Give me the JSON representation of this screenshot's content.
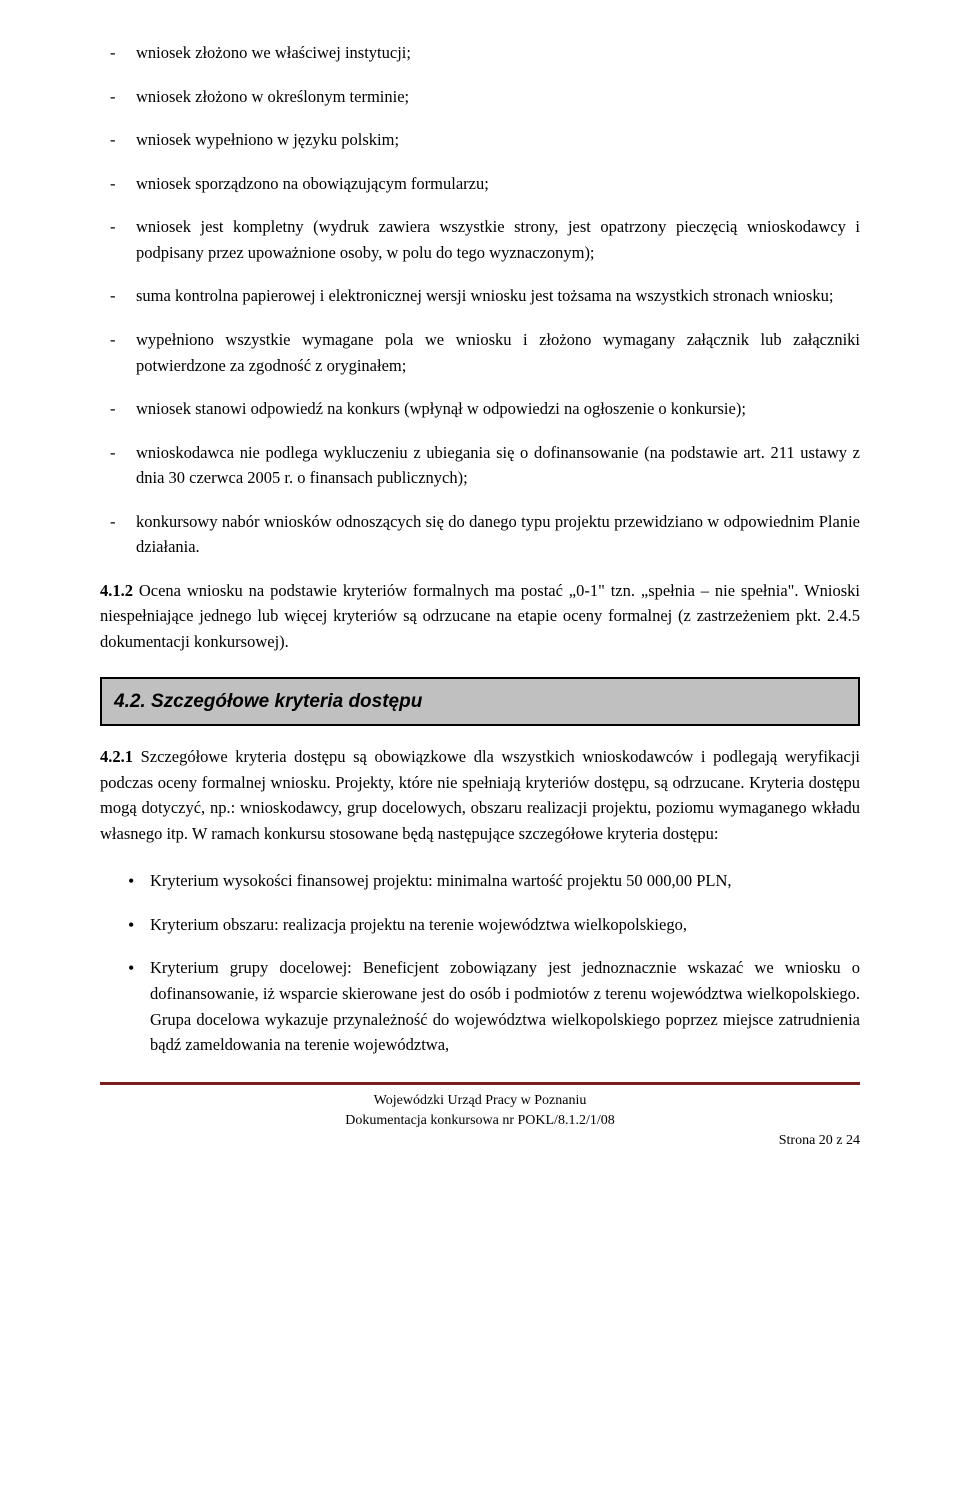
{
  "dash_items": [
    "wniosek złożono we właściwej instytucji;",
    "wniosek złożono w określonym terminie;",
    "wniosek wypełniono w języku polskim;",
    "wniosek sporządzono na obowiązującym formularzu;",
    "wniosek jest kompletny (wydruk zawiera wszystkie strony, jest opatrzony pieczęcią wnioskodawcy i podpisany przez upoważnione osoby, w polu do tego wyznaczonym);",
    "suma kontrolna papierowej i elektronicznej wersji wniosku jest tożsama na wszystkich stronach wniosku;",
    "wypełniono wszystkie wymagane pola we wniosku i złożono wymagany załącznik lub załączniki potwierdzone za zgodność z oryginałem;",
    "wniosek stanowi odpowiedź na konkurs (wpłynął w odpowiedzi na ogłoszenie o konkursie);",
    "wnioskodawca nie podlega wykluczeniu z ubiegania się o dofinansowanie (na podstawie art. 211 ustawy z dnia 30 czerwca 2005 r. o finansach publicznych);",
    "konkursowy nabór wniosków odnoszących się do danego typu projektu przewidziano w odpowiednim Planie działania."
  ],
  "para_4_1_2_lead": "4.1.2",
  "para_4_1_2_body": " Ocena wniosku na podstawie kryteriów formalnych ma postać „0-1\" tzn. „spełnia – nie spełnia\". Wnioski niespełniające jednego lub więcej kryteriów są odrzucane na etapie oceny formalnej (z zastrzeżeniem pkt. 2.4.5 dokumentacji konkursowej).",
  "section_4_2_title": "4.2. Szczegółowe kryteria dostępu",
  "para_4_2_1_lead": "4.2.1",
  "para_4_2_1_body": " Szczegółowe kryteria dostępu są obowiązkowe dla wszystkich wnioskodawców i podlegają weryfikacji podczas oceny formalnej wniosku. Projekty, które nie spełniają kryteriów dostępu, są odrzucane. Kryteria dostępu mogą dotyczyć, np.: wnioskodawcy, grup docelowych, obszaru realizacji projektu, poziomu wymaganego wkładu własnego itp. W ramach konkursu stosowane będą następujące szczegółowe kryteria dostępu:",
  "bullet_items": [
    "Kryterium wysokości finansowej projektu:  minimalna wartość projektu 50 000,00 PLN,",
    "Kryterium obszaru: realizacja projektu na terenie województwa wielkopolskiego,",
    "Kryterium grupy docelowej: Beneficjent zobowiązany jest jednoznacznie wskazać we wniosku o dofinansowanie, iż wsparcie skierowane jest do osób i podmiotów z terenu województwa wielkopolskiego. Grupa docelowa wykazuje przynależność do województwa wielkopolskiego poprzez miejsce zatrudnienia bądź zameldowania na terenie województwa,"
  ],
  "footer": {
    "line1": "Wojewódzki Urząd Pracy w Poznaniu",
    "line2": "Dokumentacja konkursowa nr POKL/8.1.2/1/08",
    "line3": "Strona 20 z 24"
  },
  "colors": {
    "section_bg": "#c0c0c0",
    "section_border": "#000000",
    "divider": "#7a1d1d",
    "text": "#000000",
    "page_bg": "#ffffff"
  }
}
